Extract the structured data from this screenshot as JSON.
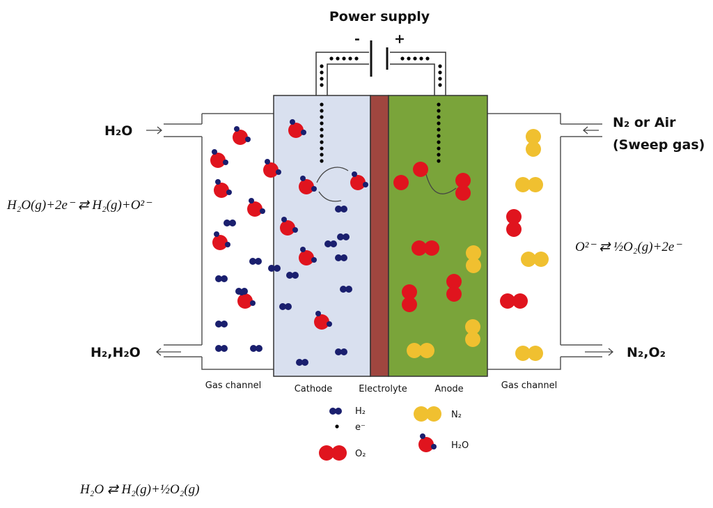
{
  "title": "Power supply",
  "terminals": {
    "negative": "-",
    "positive": "+"
  },
  "inlets": {
    "left": "H₂O",
    "right_line1": "N₂ or Air",
    "right_line2": "(Sweep gas)"
  },
  "outlets": {
    "left": "H₂,H₂O",
    "right": "N₂,O₂"
  },
  "equations": {
    "cathode": "H₂O(g)+2e⁻ ⇄ H₂(g)+O²⁻",
    "anode": "O²⁻ ⇄ ½O₂(g)+2e⁻",
    "overall": "H₂O ⇄ H₂(g)+½O₂(g)"
  },
  "regions": [
    "Gas channel",
    "Cathode",
    "Electrolyte",
    "Anode",
    "Gas channel"
  ],
  "legend": [
    "H₂",
    "e⁻",
    "O₂",
    "N₂",
    "H₂O"
  ]
}
